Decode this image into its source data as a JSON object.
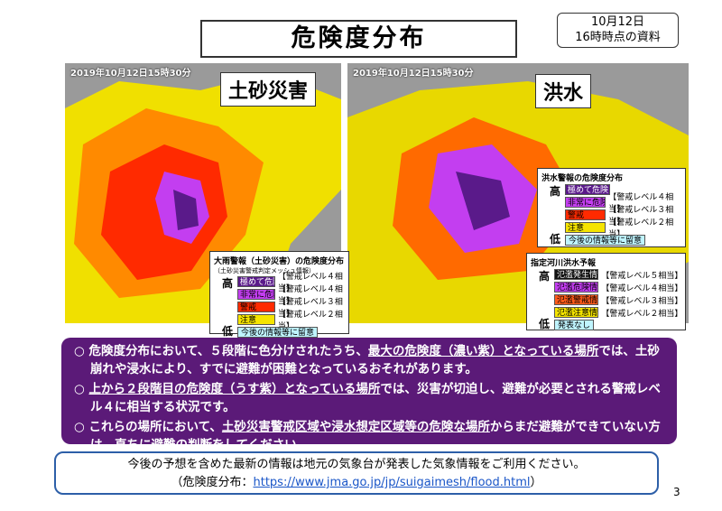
{
  "title": "危険度分布",
  "date_box": [
    "10月12日",
    "16時時点の資料"
  ],
  "maps": [
    {
      "timestamp": "2019年10月12日15時30分",
      "label": "土砂災害",
      "legends": [
        {
          "title": "大雨警報（土砂災害）の危険度分布",
          "subtitle": "（土砂災害警戒判定メッシュ情報）",
          "high": "高",
          "low": "低",
          "items": [
            {
              "name": "極めて危険",
              "level": "【警戒レベル４相当】",
              "color": "#5a1a8a"
            },
            {
              "name": "非常に危険",
              "level": "【警戒レベル４相当】",
              "color": "#c33ef0"
            },
            {
              "name": "警戒",
              "level": "【警戒レベル３相当】",
              "color": "#ff2a00"
            },
            {
              "name": "注意",
              "level": "【警戒レベル２相当】",
              "color": "#f5e400"
            }
          ],
          "note": "今後の情報等に留意"
        }
      ]
    },
    {
      "timestamp": "2019年10月12日15時30分",
      "label": "洪水",
      "legends": [
        {
          "title": "洪水警報の危険度分布",
          "high": "高",
          "low": "低",
          "items": [
            {
              "name": "極めて危険",
              "level": "",
              "color": "#5a1a8a"
            },
            {
              "name": "非常に危険",
              "level": "【警戒レベル４相当】",
              "color": "#c33ef0"
            },
            {
              "name": "警戒",
              "level": "【警戒レベル３相当】",
              "color": "#ff2a00"
            },
            {
              "name": "注意",
              "level": "【警戒レベル２相当】",
              "color": "#f5e400"
            }
          ],
          "note": "今後の情報等に留意"
        },
        {
          "title": "指定河川洪水予報",
          "high": "高",
          "low": "低",
          "items": [
            {
              "name": "氾濫発生情報",
              "level": "【警戒レベル５相当】",
              "color": "#111111"
            },
            {
              "name": "氾濫危険情報",
              "level": "【警戒レベル４相当】",
              "color": "#c33ef0"
            },
            {
              "name": "氾濫警戒情報",
              "level": "【警戒レベル３相当】",
              "color": "#ff5a1a"
            },
            {
              "name": "氾濫注意情報",
              "level": "【警戒レベル２相当】",
              "color": "#f5e400"
            }
          ],
          "note": "発表なし"
        }
      ]
    }
  ],
  "bullets": [
    [
      {
        "text": "○ 危険度分布において、５段階に色分けされたうち、"
      },
      {
        "text": "最大の危険度（濃い紫）となっている場所",
        "underline": true
      },
      {
        "text": "では、土砂崩れや浸水により、すでに避難が困難となっているおそれがあります。"
      }
    ],
    [
      {
        "text": "○ "
      },
      {
        "text": "上から２段階目の危険度（うす紫）となっている場所",
        "underline": true
      },
      {
        "text": "では、災害が切迫し、避難が必要とされる警戒レベル４に相当する状況です。"
      }
    ],
    [
      {
        "text": "○ これらの場所において、"
      },
      {
        "text": "土砂災害警戒区域や浸水想定区域等の危険な場所",
        "underline": true
      },
      {
        "text": "からまだ避難ができていない方は、直ちに避難の判断をしてください。"
      }
    ]
  ],
  "footer": {
    "line1": "今後の予想を含めた最新の情報は地元の気象台が発表した気象情報をご利用ください。",
    "prefix": "（危険度分布：",
    "url": "https://www.jma.go.jp/jp/suigaimesh/flood.html",
    "suffix": "）"
  },
  "page_number": "3"
}
